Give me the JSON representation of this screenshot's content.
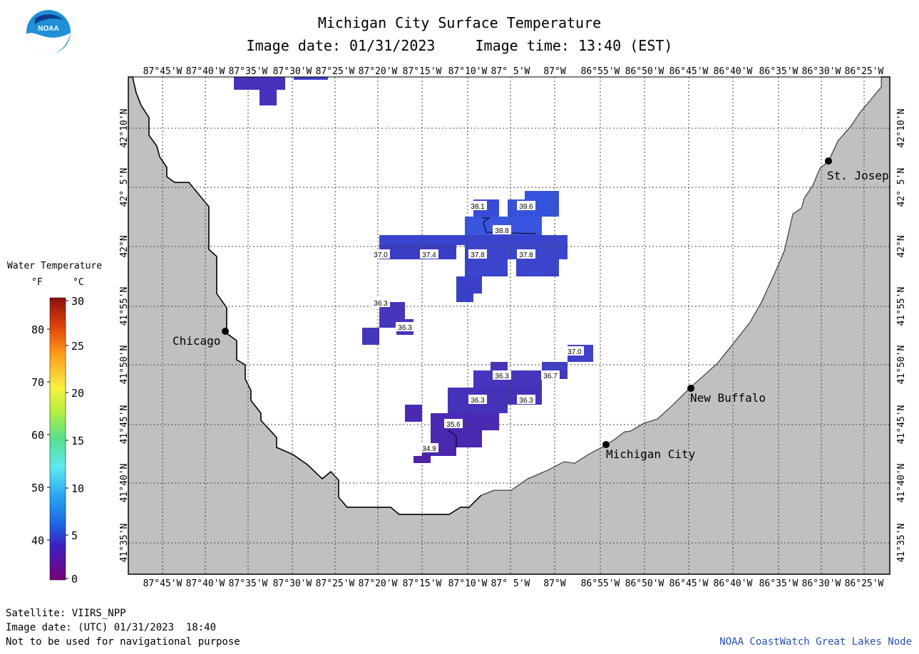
{
  "header": {
    "title": "Michigan City Surface Temperature",
    "image_date": "Image date: 01/31/2023",
    "image_time": "Image time: 13:40 (EST)"
  },
  "logo": {
    "text": "NOAA"
  },
  "map": {
    "lon_labels": [
      "87°45'W",
      "87°40'W",
      "87°35'W",
      "87°30'W",
      "87°25'W",
      "87°20'W",
      "87°15'W",
      "87°10'W",
      "87° 5'W",
      "87°W",
      "86°55'W",
      "86°50'W",
      "86°45'W",
      "86°40'W",
      "86°35'W",
      "86°30'W",
      "86°25'W"
    ],
    "lat_labels": [
      "42°10'N",
      "42° 5'N",
      "42°N",
      "41°55'N",
      "41°50'N",
      "41°45'N",
      "41°40'N",
      "41°35'N"
    ],
    "cities": [
      {
        "name": "Chicago"
      },
      {
        "name": "St. Josep"
      },
      {
        "name": "New Buffalo"
      },
      {
        "name": "Michigan City"
      }
    ],
    "temp_labels": [
      "38.1",
      "39.6",
      "38.8",
      "37.0",
      "37.4",
      "37.8",
      "37.8",
      "36.3",
      "36.3",
      "37.0",
      "36.3",
      "36.7",
      "36.3",
      "36.3",
      "35.6",
      "34.9"
    ],
    "colors": {
      "land": "#c0c0c0",
      "water": "#ffffff"
    }
  },
  "legend": {
    "title": "Water Temperature",
    "unit_f": "°F",
    "unit_c": "°C",
    "f_ticks": [
      "80",
      "70",
      "60",
      "50",
      "40"
    ],
    "c_ticks": [
      "30",
      "25",
      "20",
      "15",
      "10",
      "5",
      "0"
    ]
  },
  "footer": {
    "satellite": "Satellite: VIIRS_NPP",
    "utc_date": "Image date: (UTC) 01/31/2023  18:40",
    "disclaimer": "Not to be used for navigational purpose",
    "credit": "NOAA CoastWatch Great Lakes Node"
  }
}
